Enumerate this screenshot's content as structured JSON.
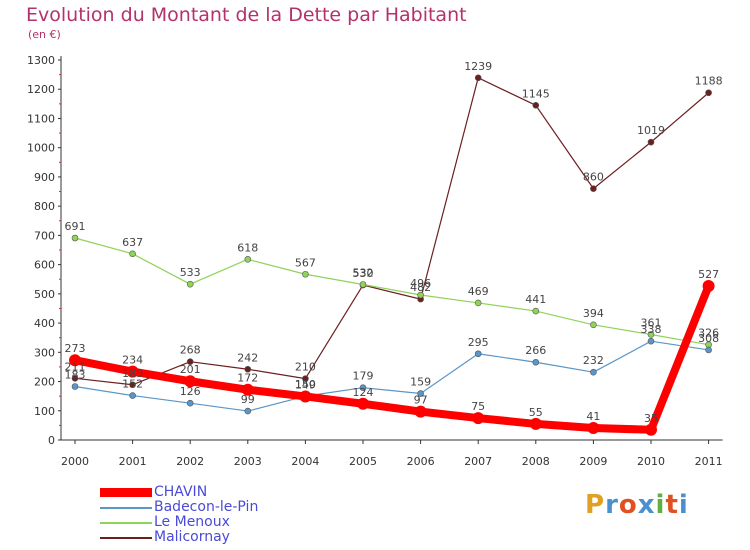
{
  "title": "Evolution du Montant de la Dette par Habitant",
  "subtitle": "(en €)",
  "logo": "Proxiti",
  "chart_data": {
    "type": "line",
    "title": "Evolution du Montant de la Dette par Habitant",
    "ylabel": "(en €)",
    "categories": [
      "2000",
      "2001",
      "2002",
      "2003",
      "2004",
      "2005",
      "2006",
      "2007",
      "2008",
      "2009",
      "2010",
      "2011"
    ],
    "y_ticks": [
      0,
      100,
      200,
      300,
      400,
      500,
      600,
      700,
      800,
      900,
      1000,
      1100,
      1200,
      1300
    ],
    "ylim": [
      0,
      1300
    ],
    "grid": false,
    "legend_position": "bottom-left",
    "series": [
      {
        "name": "CHAVIN",
        "color": "#ff0000",
        "values": [
          273,
          234,
          201,
          172,
          149,
          124,
          97,
          75,
          55,
          41,
          35,
          527
        ]
      },
      {
        "name": "Badecon-le-Pin",
        "color": "#5a96c8",
        "values": [
          183,
          152,
          126,
          99,
          150,
          179,
          159,
          295,
          266,
          232,
          338,
          308
        ]
      },
      {
        "name": "Le Menoux",
        "color": "#8fd35a",
        "values": [
          691,
          637,
          533,
          618,
          567,
          532,
          496,
          469,
          441,
          394,
          361,
          326
        ]
      },
      {
        "name": "Malicornay",
        "color": "#6b2020",
        "values": [
          211,
          189,
          268,
          242,
          210,
          530,
          482,
          1239,
          1145,
          860,
          1019,
          1188
        ]
      }
    ]
  }
}
